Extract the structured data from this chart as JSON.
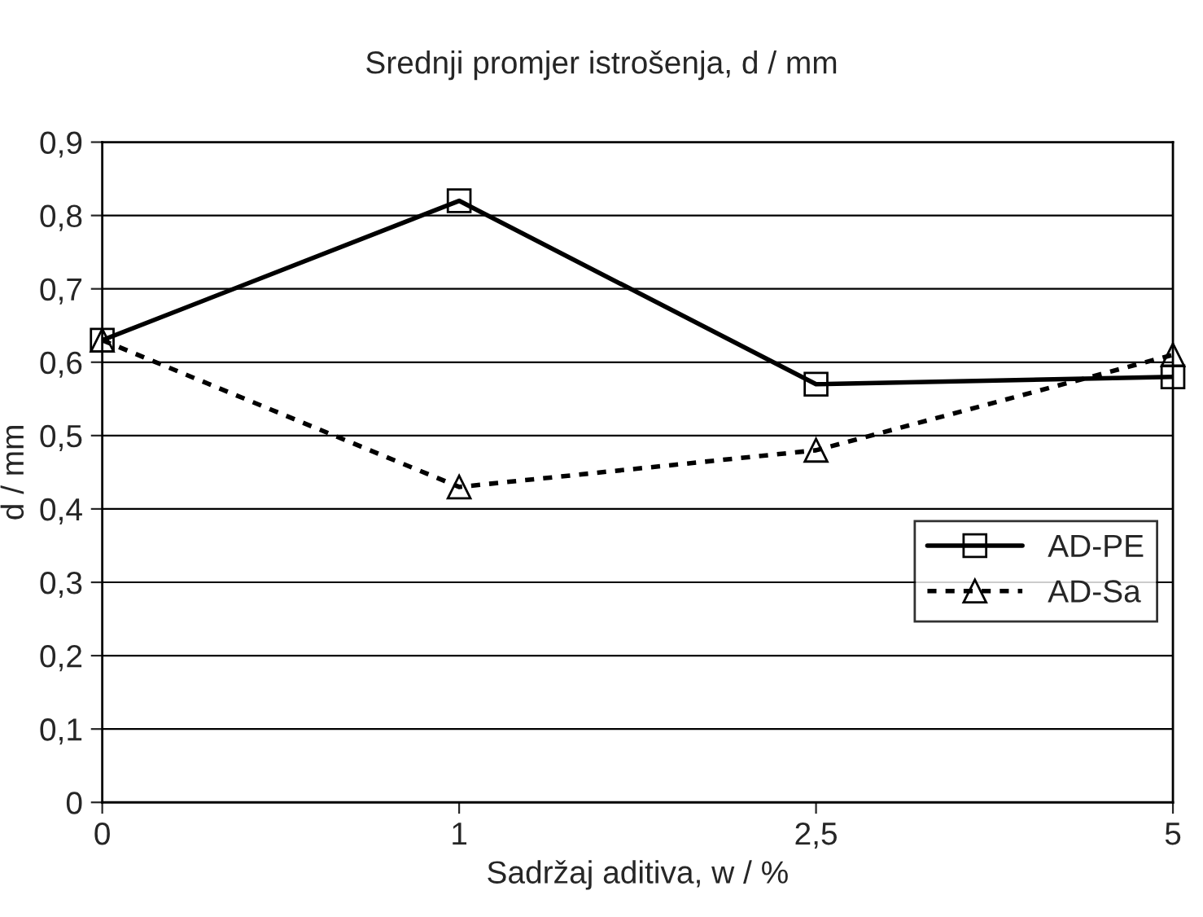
{
  "chart_data": {
    "type": "line",
    "title": "Srednji promjer istrošenja, d / mm",
    "xlabel": "Sadržaj aditiva, w / %",
    "ylabel": "d / mm",
    "categories": [
      "0",
      "1",
      "2,5",
      "5"
    ],
    "series": [
      {
        "name": "AD-PE",
        "color": "#000000",
        "values": [
          0.63,
          0.82,
          0.57,
          0.58
        ],
        "marker": "square",
        "line_style": "solid"
      },
      {
        "name": "AD-Sa",
        "color": "#000000",
        "values": [
          0.63,
          0.43,
          0.48,
          0.61
        ],
        "marker": "triangle",
        "line_style": "dotted"
      }
    ],
    "ylim": [
      0,
      0.9
    ],
    "yticks": [
      {
        "value": 0,
        "label": "0"
      },
      {
        "value": 0.1,
        "label": "0,1"
      },
      {
        "value": 0.2,
        "label": "0,2"
      },
      {
        "value": 0.3,
        "label": "0,3"
      },
      {
        "value": 0.4,
        "label": "0,4"
      },
      {
        "value": 0.5,
        "label": "0,5"
      },
      {
        "value": 0.6,
        "label": "0,6"
      },
      {
        "value": 0.7,
        "label": "0,7"
      },
      {
        "value": 0.8,
        "label": "0,8"
      },
      {
        "value": 0.9,
        "label": "0,9"
      }
    ],
    "grid": "y",
    "legend": "right"
  }
}
